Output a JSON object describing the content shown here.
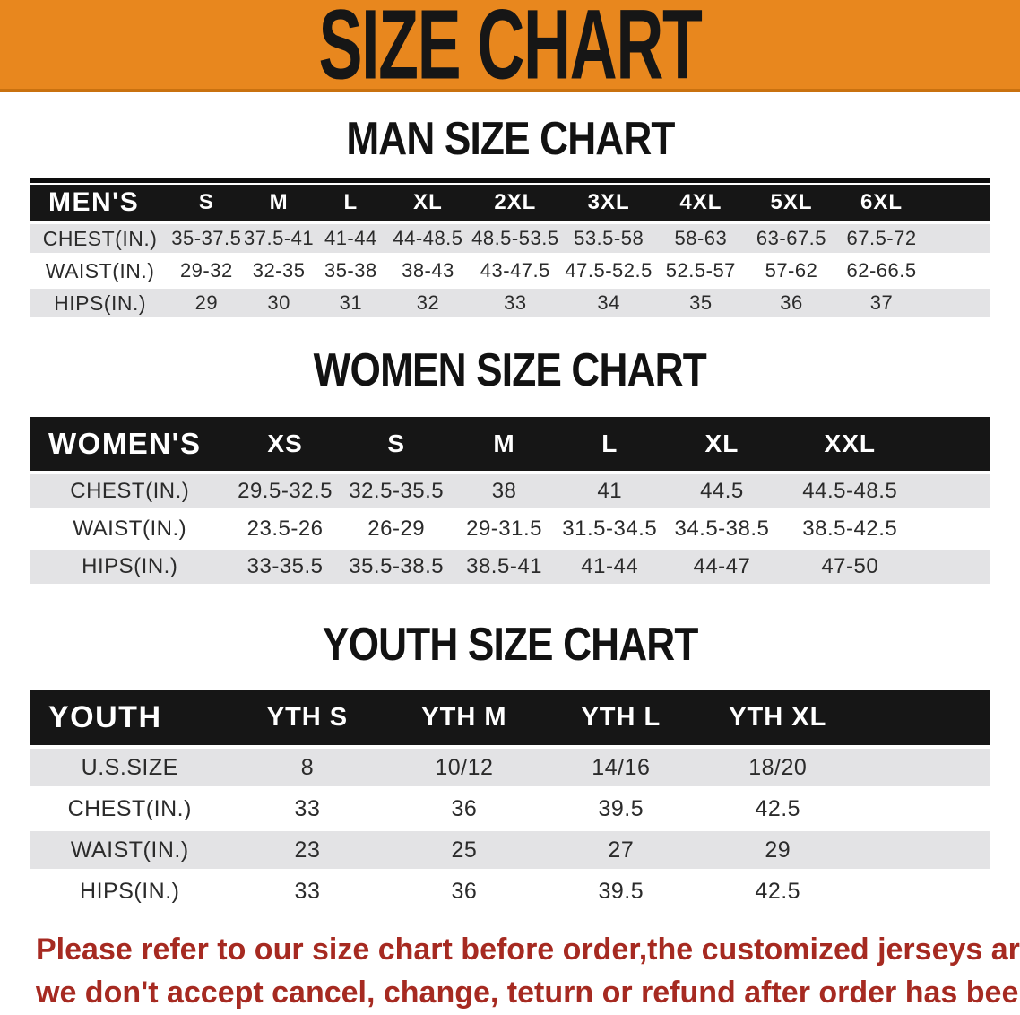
{
  "banner": {
    "title": "SIZE CHART",
    "bg_color": "#E8871E",
    "text_color": "#161616"
  },
  "sections": [
    {
      "heading": "MAN SIZE CHART",
      "table": {
        "header_label": "MEN'S",
        "columns": [
          "S",
          "M",
          "L",
          "XL",
          "2XL",
          "3XL",
          "4XL",
          "5XL",
          "6XL"
        ],
        "rows": [
          {
            "label": "CHEST(IN.)",
            "values": [
              "35-37.5",
              "37.5-41",
              "41-44",
              "44-48.5",
              "48.5-53.5",
              "53.5-58",
              "58-63",
              "63-67.5",
              "67.5-72"
            ]
          },
          {
            "label": "WAIST(IN.)",
            "values": [
              "29-32",
              "32-35",
              "35-38",
              "38-43",
              "43-47.5",
              "47.5-52.5",
              "52.5-57",
              "57-62",
              "62-66.5"
            ]
          },
          {
            "label": "HIPS(IN.)",
            "values": [
              "29",
              "30",
              "31",
              "32",
              "33",
              "34",
              "35",
              "36",
              "37"
            ]
          }
        ]
      }
    },
    {
      "heading": "WOMEN SIZE CHART",
      "table": {
        "header_label": "WOMEN'S",
        "columns": [
          "XS",
          "S",
          "M",
          "L",
          "XL",
          "XXL"
        ],
        "rows": [
          {
            "label": "CHEST(IN.)",
            "values": [
              "29.5-32.5",
              "32.5-35.5",
              "38",
              "41",
              "44.5",
              "44.5-48.5"
            ]
          },
          {
            "label": "WAIST(IN.)",
            "values": [
              "23.5-26",
              "26-29",
              "29-31.5",
              "31.5-34.5",
              "34.5-38.5",
              "38.5-42.5"
            ]
          },
          {
            "label": "HIPS(IN.)",
            "values": [
              "33-35.5",
              "35.5-38.5",
              "38.5-41",
              "41-44",
              "44-47",
              "47-50"
            ]
          }
        ]
      }
    },
    {
      "heading": "YOUTH SIZE CHART",
      "table": {
        "header_label": "YOUTH",
        "columns": [
          "YTH S",
          "YTH M",
          "YTH L",
          "YTH XL"
        ],
        "rows": [
          {
            "label": "U.S.SIZE",
            "values": [
              "8",
              "10/12",
              "14/16",
              "18/20"
            ]
          },
          {
            "label": "CHEST(IN.)",
            "values": [
              "33",
              "36",
              "39.5",
              "42.5"
            ]
          },
          {
            "label": "WAIST(IN.)",
            "values": [
              "23",
              "25",
              "27",
              "29"
            ]
          },
          {
            "label": "HIPS(IN.)",
            "values": [
              "33",
              "36",
              "39.5",
              "42.5"
            ]
          }
        ]
      }
    }
  ],
  "footer": {
    "line1": "Please refer to our size chart before order,the customized jerseys are special products,",
    "line2": "we don't accept cancel, change, teturn or refund after order has been placed!",
    "text_color": "#A62A21"
  },
  "colors": {
    "stripe_gray": "#E3E3E5",
    "header_bar_black": "#161616"
  }
}
